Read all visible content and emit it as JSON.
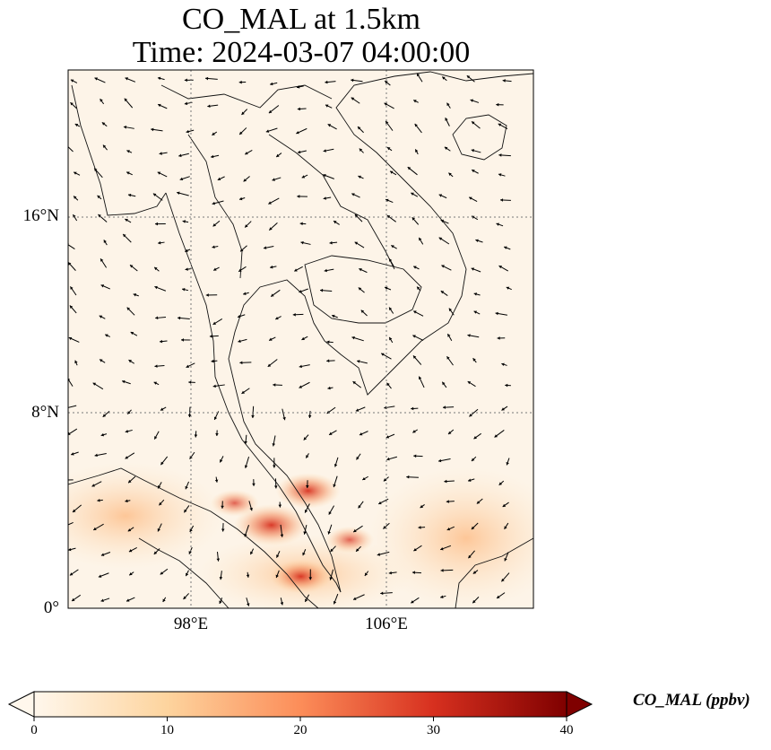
{
  "title": {
    "line1": "CO_MAL at 1.5km",
    "line2": "Time: 2024-03-07 04:00:00"
  },
  "map": {
    "lon_range": [
      93,
      112
    ],
    "lat_range": [
      0,
      22
    ],
    "lat_ticks": [
      {
        "value": 16,
        "label": "16°N"
      },
      {
        "value": 8,
        "label": "8°N"
      },
      {
        "value": 0,
        "label": "0°"
      }
    ],
    "lon_ticks": [
      {
        "value": 98,
        "label": "98°E"
      },
      {
        "value": 106,
        "label": "106°E"
      }
    ],
    "gridlines": true,
    "background_color": "#fdf4e8",
    "wind_vectors": true
  },
  "colorbar": {
    "label": "CO_MAL (ppbv)",
    "colormap": "OrRd",
    "range": [
      0,
      40
    ],
    "ticks": [
      "0",
      "10",
      "20",
      "30",
      "40"
    ],
    "extend": "both"
  },
  "chart_data": {
    "type": "heatmap",
    "variable": "CO_MAL",
    "units": "ppbv",
    "level": "1.5km",
    "hotspots": [
      {
        "lon": 101.3,
        "lat": 3.4,
        "value": 24
      },
      {
        "lon": 102.8,
        "lat": 4.8,
        "value": 18
      },
      {
        "lon": 102.5,
        "lat": 1.3,
        "value": 16
      },
      {
        "lon": 99.8,
        "lat": 4.3,
        "value": 9
      },
      {
        "lon": 104.5,
        "lat": 2.8,
        "value": 9
      }
    ]
  }
}
